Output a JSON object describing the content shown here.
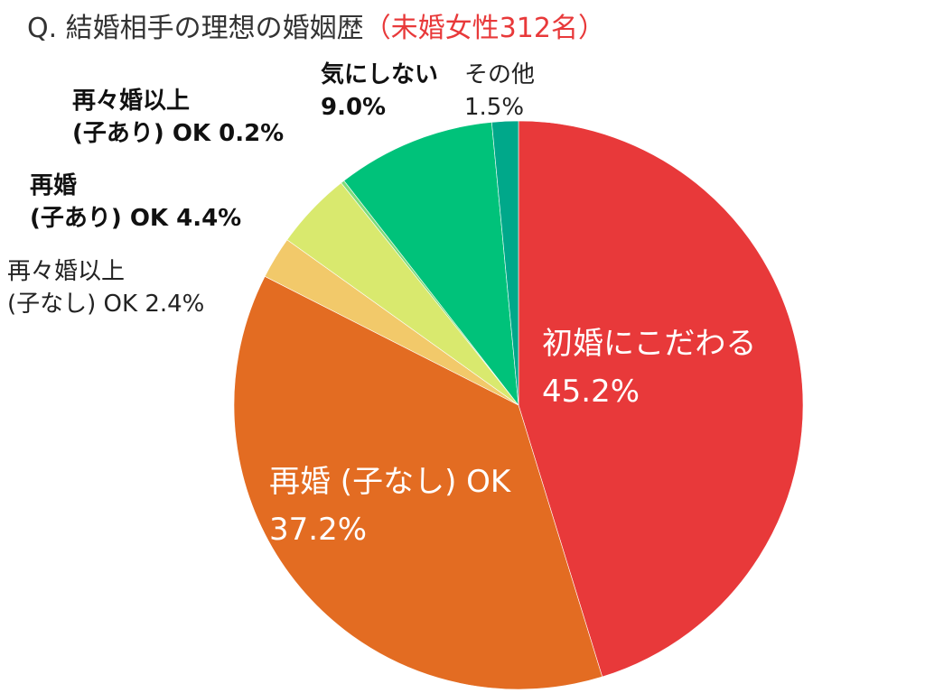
{
  "title": {
    "main": "Q. 結婚相手の理想の婚姻歴",
    "accent": "（未婚女性312名）"
  },
  "labels": [
    {
      "line1": "初婚にこだわる",
      "line2": "45.2%"
    },
    {
      "line1": "再婚 (子なし) OK",
      "line2": "37.2%"
    },
    {
      "line1": "再々婚以上",
      "line2": "(子なし) OK  2.4%"
    },
    {
      "line1": "再婚",
      "line2": "(子あり) OK  4.4%"
    },
    {
      "line1": "再々婚以上",
      "line2": "(子あり) OK  0.2%"
    },
    {
      "line1": "気にしない",
      "line2": "9.0%"
    },
    {
      "line1": "その他",
      "line2": "1.5%"
    }
  ],
  "chart_data": {
    "type": "pie",
    "title": "Q. 結婚相手の理想の婚姻歴（未婚女性312名）",
    "start_angle": "12 o'clock",
    "direction": "clockwise",
    "categories": [
      "初婚にこだわる",
      "再婚 (子なし) OK",
      "再々婚以上 (子なし) OK",
      "再婚 (子あり) OK",
      "再々婚以上 (子あり) OK",
      "気にしない",
      "その他"
    ],
    "values": [
      45.2,
      37.2,
      2.4,
      4.4,
      0.2,
      9.0,
      1.5
    ],
    "unit": "%",
    "colors": [
      "#e8393a",
      "#e36c22",
      "#f2c96a",
      "#d9e96e",
      "#7fdc7a",
      "#00c27a",
      "#00a88a"
    ],
    "sample": "未婚女性312名",
    "legend": "none (direct labels)"
  }
}
